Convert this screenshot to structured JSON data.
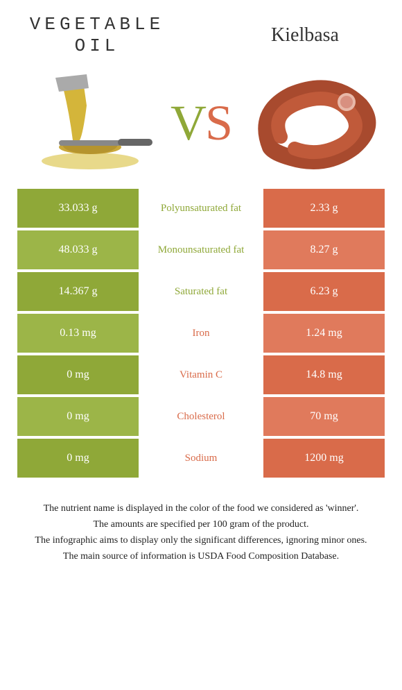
{
  "header": {
    "left_title_line1": "Vegetable",
    "left_title_line2": "oil",
    "right_title": "Kielbasa",
    "vs_v": "V",
    "vs_s": "S"
  },
  "colors": {
    "left": "#8fa838",
    "right": "#d96b4a",
    "left_alt": "#9cb548",
    "right_alt": "#e07a5c"
  },
  "rows": [
    {
      "left": "33.033 g",
      "label": "Polyunsaturated fat",
      "right": "2.33 g",
      "winner": "left"
    },
    {
      "left": "48.033 g",
      "label": "Monounsaturated fat",
      "right": "8.27 g",
      "winner": "left"
    },
    {
      "left": "14.367 g",
      "label": "Saturated fat",
      "right": "6.23 g",
      "winner": "left"
    },
    {
      "left": "0.13 mg",
      "label": "Iron",
      "right": "1.24 mg",
      "winner": "right"
    },
    {
      "left": "0 mg",
      "label": "Vitamin C",
      "right": "14.8 mg",
      "winner": "right"
    },
    {
      "left": "0 mg",
      "label": "Cholesterol",
      "right": "70 mg",
      "winner": "right"
    },
    {
      "left": "0 mg",
      "label": "Sodium",
      "right": "1200 mg",
      "winner": "right"
    }
  ],
  "footer": {
    "line1": "The nutrient name is displayed in the color of the food we considered as 'winner'.",
    "line2": "The amounts are specified per 100 gram of the product.",
    "line3": "The infographic aims to display only the significant differences, ignoring minor ones.",
    "line4": "The main source of information is USDA Food Composition Database."
  }
}
